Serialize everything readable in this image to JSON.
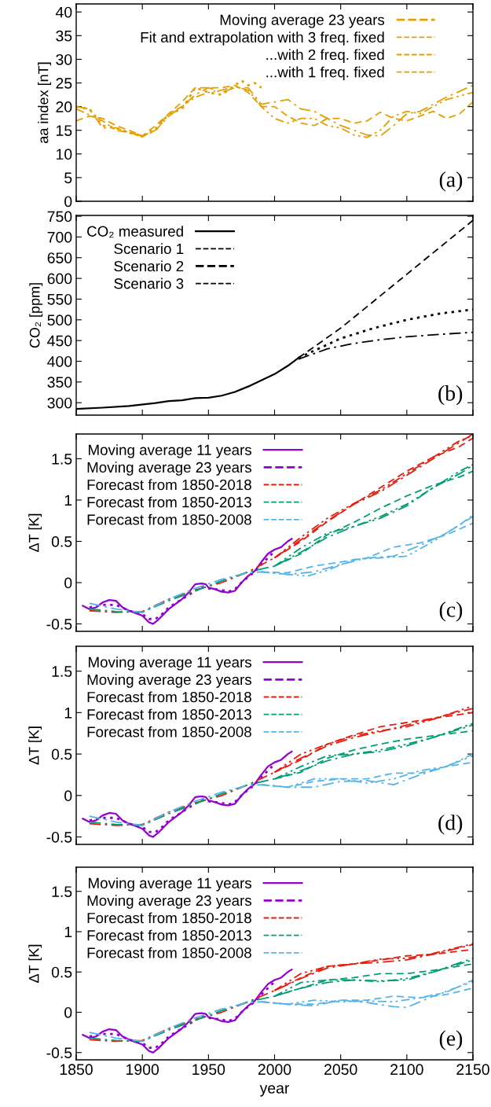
{
  "chart_data": [
    {
      "type": "line",
      "ylabel": "aa index [nT]",
      "xlim": [
        1850,
        2150
      ],
      "ylim": [
        0,
        41.7
      ],
      "xticks": [
        1850,
        1900,
        1950,
        2000,
        2050,
        2100,
        2150
      ],
      "yticks": [
        0,
        5,
        10,
        15,
        20,
        25,
        30,
        35,
        40
      ],
      "tick_labels": "y",
      "legend": "top right",
      "annotations": [
        "(a)"
      ],
      "series": [
        {
          "name": "Moving average 23 years",
          "color": "#e69f00",
          "line_style": "dotted",
          "x": [
            1850,
            1860,
            1870,
            1880,
            1890,
            1900,
            1910,
            1920,
            1930,
            1940,
            1950,
            1960,
            1970,
            1975,
            1980,
            1985,
            1990
          ],
          "values": [
            20,
            19.5,
            16,
            15.5,
            14.5,
            13.8,
            15,
            18.5,
            19.5,
            24,
            23,
            22.5,
            24.5,
            25.5,
            24.5,
            25,
            24
          ]
        },
        {
          "name": "Fit and extrapolation with 3 freq. fixed",
          "color": "#e69f00",
          "line_style": "dashdot",
          "x": [
            1850,
            1860,
            1870,
            1880,
            1890,
            1900,
            1910,
            1920,
            1930,
            1940,
            1950,
            1960,
            1970,
            1980,
            1990,
            2000,
            2010,
            2020,
            2030,
            2040,
            2050,
            2060,
            2070,
            2080,
            2090,
            2100,
            2110,
            2120,
            2130,
            2150
          ],
          "values": [
            20,
            19.5,
            15.5,
            15.5,
            14.5,
            13.8,
            15,
            18,
            20,
            22.5,
            24,
            23,
            24,
            24,
            20.5,
            21,
            21.5,
            19.5,
            19,
            17.5,
            16,
            15,
            14,
            13.8,
            16,
            18.5,
            19,
            20.5,
            22,
            24.5
          ]
        },
        {
          "name": "...with 2 freq. fixed",
          "color": "#e69f00",
          "line_style": "dashdotdot",
          "x": [
            1850,
            1870,
            1880,
            1890,
            1900,
            1910,
            1920,
            1930,
            1940,
            1950,
            1960,
            1970,
            1980,
            1990,
            2000,
            2010,
            2020,
            2030,
            2040,
            2050,
            2060,
            2070,
            2080,
            2090,
            2100,
            2110,
            2120,
            2130,
            2150
          ],
          "values": [
            19.5,
            17,
            15,
            14.5,
            13.6,
            15.5,
            18.5,
            20,
            22,
            23,
            23.5,
            24.2,
            23.5,
            20,
            17.5,
            16.5,
            17.5,
            17.5,
            16,
            15.5,
            14,
            13.5,
            15,
            18,
            19,
            18.5,
            20,
            21.5,
            23
          ]
        },
        {
          "name": "...with 1 freq. fixed",
          "color": "#e69f00",
          "line_style": "dashed",
          "x": [
            1850,
            1860,
            1870,
            1880,
            1890,
            1900,
            1910,
            1920,
            1930,
            1940,
            1950,
            1960,
            1970,
            1980,
            1990,
            2000,
            2010,
            2020,
            2030,
            2040,
            2050,
            2060,
            2070,
            2080,
            2090,
            2100,
            2110,
            2120,
            2130,
            2140,
            2150
          ],
          "values": [
            17,
            18,
            17.5,
            16,
            15,
            13.8,
            16,
            18.5,
            21,
            24,
            24,
            24,
            24.5,
            23,
            20,
            20,
            18,
            16.5,
            16,
            17.5,
            17.5,
            16.5,
            17,
            18.8,
            17.5,
            17,
            18,
            19,
            17.5,
            18.5,
            21
          ]
        }
      ]
    },
    {
      "type": "line",
      "ylabel": "CO₂ [ppm]",
      "xlim": [
        1850,
        2150
      ],
      "ylim": [
        270,
        752
      ],
      "xticks": [
        1850,
        1900,
        1950,
        2000,
        2050,
        2100,
        2150
      ],
      "yticks": [
        300,
        350,
        400,
        450,
        500,
        550,
        600,
        650,
        700,
        750
      ],
      "tick_labels": "y",
      "legend": "top left",
      "annotations": [
        "(b)"
      ],
      "series": [
        {
          "name": "CO₂ measured",
          "color": "#000000",
          "line_style": "solid",
          "x": [
            1850,
            1870,
            1890,
            1910,
            1920,
            1930,
            1940,
            1950,
            1960,
            1970,
            1980,
            1990,
            2000,
            2010,
            2018
          ],
          "values": [
            285,
            288,
            292,
            299,
            304,
            306,
            311,
            312,
            317,
            326,
            339,
            354,
            369,
            389,
            408
          ]
        },
        {
          "name": "Scenario 1",
          "color": "#000000",
          "line_style": "dashed",
          "x": [
            2018,
            2050,
            2100,
            2150
          ],
          "values": [
            408,
            480,
            610,
            740
          ]
        },
        {
          "name": "Scenario 2",
          "color": "#000000",
          "line_style": "dotted",
          "x": [
            2018,
            2050,
            2075,
            2100,
            2125,
            2150
          ],
          "values": [
            408,
            455,
            480,
            500,
            515,
            525
          ]
        },
        {
          "name": "Scenario 3",
          "color": "#000000",
          "line_style": "dashdot",
          "x": [
            2018,
            2040,
            2060,
            2080,
            2100,
            2125,
            2150
          ],
          "values": [
            405,
            430,
            443,
            452,
            459,
            465,
            470
          ]
        }
      ]
    },
    {
      "type": "line",
      "ylabel": "ΔT [K]",
      "xlim": [
        1850,
        2150
      ],
      "ylim": [
        -0.59,
        1.8
      ],
      "xticks": [
        1850,
        1900,
        1950,
        2000,
        2050,
        2100,
        2150
      ],
      "yticks": [
        -0.5,
        0,
        0.5,
        1,
        1.5
      ],
      "tick_labels": "y",
      "legend": "top left",
      "annotations": [
        "(c)"
      ],
      "series": [
        {
          "name": "Moving average 11 years",
          "color": "#9400d3",
          "line_style": "solid",
          "x": [
            1855,
            1860,
            1865,
            1870,
            1875,
            1880,
            1885,
            1890,
            1895,
            1900,
            1905,
            1908,
            1912,
            1920,
            1930,
            1935,
            1940,
            1945,
            1948,
            1950,
            1955,
            1960,
            1965,
            1970,
            1975,
            1980,
            1985,
            1990,
            1995,
            2000,
            2005,
            2010,
            2013
          ],
          "values": [
            -0.28,
            -0.32,
            -0.3,
            -0.24,
            -0.21,
            -0.22,
            -0.3,
            -0.34,
            -0.37,
            -0.4,
            -0.48,
            -0.5,
            -0.45,
            -0.32,
            -0.2,
            -0.12,
            -0.02,
            -0.01,
            -0.02,
            -0.06,
            -0.08,
            -0.11,
            -0.12,
            -0.1,
            0.0,
            0.08,
            0.14,
            0.25,
            0.35,
            0.4,
            0.43,
            0.5,
            0.53
          ]
        },
        {
          "name": "Moving average 23 years",
          "color": "#9400d3",
          "line_style": "dotted",
          "x": [
            1860,
            1870,
            1880,
            1890,
            1900,
            1905,
            1910,
            1915,
            1920,
            1930,
            1940,
            1945,
            1950,
            1960,
            1965,
            1970,
            1975,
            1980,
            1985,
            1990,
            1995,
            2000
          ],
          "values": [
            -0.3,
            -0.27,
            -0.27,
            -0.34,
            -0.38,
            -0.44,
            -0.44,
            -0.38,
            -0.3,
            -0.2,
            -0.1,
            -0.05,
            -0.07,
            -0.09,
            -0.11,
            -0.08,
            0.0,
            0.07,
            0.13,
            0.22,
            0.3,
            0.38
          ]
        },
        {
          "name": "Forecast from 1850-2018",
          "color": "#e51e10",
          "line_style": "dashdot",
          "x": [
            1860,
            1880,
            1900,
            1920,
            1940,
            1960,
            1980,
            2000,
            2020,
            2040,
            2060,
            2080,
            2100,
            2120,
            2140,
            2150
          ],
          "values": [
            -0.34,
            -0.36,
            -0.35,
            -0.2,
            -0.09,
            0.0,
            0.13,
            0.3,
            0.52,
            0.75,
            0.95,
            1.1,
            1.3,
            1.5,
            1.7,
            1.8
          ]
        },
        {
          "color": "#e51e10",
          "line_style": "dashdotdot",
          "x": [
            2000,
            2020,
            2040,
            2060,
            2080,
            2100,
            2120,
            2140,
            2150
          ],
          "values": [
            0.3,
            0.55,
            0.78,
            0.96,
            1.12,
            1.32,
            1.52,
            1.72,
            1.78
          ]
        },
        {
          "color": "#e51e10",
          "line_style": "dashed",
          "x": [
            2000,
            2020,
            2040,
            2060,
            2080,
            2100,
            2120,
            2140,
            2150
          ],
          "values": [
            0.3,
            0.5,
            0.74,
            0.95,
            1.15,
            1.35,
            1.52,
            1.65,
            1.75
          ]
        },
        {
          "name": "Forecast from 1850-2013",
          "color": "#009e73",
          "line_style": "dashdot",
          "x": [
            1860,
            1880,
            1900,
            1920,
            1940,
            1960,
            1980,
            2000,
            2020,
            2040,
            2060,
            2080,
            2100,
            2120,
            2140,
            2150
          ],
          "values": [
            -0.32,
            -0.35,
            -0.36,
            -0.22,
            -0.1,
            0.02,
            0.13,
            0.2,
            0.37,
            0.55,
            0.68,
            0.78,
            0.93,
            1.15,
            1.32,
            1.42
          ]
        },
        {
          "color": "#009e73",
          "line_style": "dashdotdot",
          "x": [
            2000,
            2020,
            2040,
            2060,
            2080,
            2100,
            2120,
            2140,
            2150
          ],
          "values": [
            0.2,
            0.42,
            0.6,
            0.68,
            0.8,
            0.95,
            1.15,
            1.35,
            1.43
          ]
        },
        {
          "color": "#009e73",
          "line_style": "dashed",
          "x": [
            2000,
            2020,
            2040,
            2060,
            2080,
            2100,
            2120,
            2140,
            2150
          ],
          "values": [
            0.2,
            0.35,
            0.58,
            0.73,
            0.9,
            1.05,
            1.18,
            1.28,
            1.35
          ]
        },
        {
          "name": "Forecast from 1850-2008",
          "color": "#56b4e9",
          "line_style": "dashdot",
          "x": [
            1860,
            1880,
            1900,
            1920,
            1940,
            1960,
            1980,
            1990,
            2010,
            2030,
            2050,
            2070,
            2090,
            2110,
            2130,
            2150
          ],
          "values": [
            -0.25,
            -0.32,
            -0.36,
            -0.2,
            -0.07,
            0.04,
            0.12,
            0.13,
            0.1,
            0.13,
            0.22,
            0.3,
            0.32,
            0.45,
            0.6,
            0.8
          ]
        },
        {
          "color": "#56b4e9",
          "line_style": "dashdotdot",
          "x": [
            1990,
            2010,
            2025,
            2040,
            2060,
            2080,
            2100,
            2120,
            2140,
            2150
          ],
          "values": [
            0.13,
            0.1,
            0.08,
            0.15,
            0.28,
            0.3,
            0.32,
            0.5,
            0.7,
            0.82
          ]
        },
        {
          "color": "#56b4e9",
          "line_style": "dashed",
          "x": [
            1990,
            2010,
            2030,
            2050,
            2070,
            2090,
            2110,
            2130,
            2150
          ],
          "values": [
            0.13,
            0.12,
            0.2,
            0.25,
            0.3,
            0.43,
            0.48,
            0.58,
            0.72
          ]
        }
      ]
    },
    {
      "type": "line",
      "ylabel": "ΔT [K]",
      "xlim": [
        1850,
        2150
      ],
      "ylim": [
        -0.59,
        1.8
      ],
      "xticks": [
        1850,
        1900,
        1950,
        2000,
        2050,
        2100,
        2150
      ],
      "yticks": [
        -0.5,
        0,
        0.5,
        1,
        1.5
      ],
      "tick_labels": "y",
      "legend": "top left",
      "annotations": [
        "(d)"
      ],
      "series": [
        {
          "name": "Moving average 11 years",
          "color": "#9400d3",
          "line_style": "solid",
          "x": [
            1855,
            1860,
            1865,
            1870,
            1875,
            1880,
            1885,
            1890,
            1895,
            1900,
            1905,
            1908,
            1912,
            1920,
            1930,
            1935,
            1940,
            1945,
            1948,
            1950,
            1955,
            1960,
            1965,
            1970,
            1975,
            1980,
            1985,
            1990,
            1995,
            2000,
            2005,
            2010,
            2013
          ],
          "values": [
            -0.28,
            -0.32,
            -0.3,
            -0.24,
            -0.21,
            -0.22,
            -0.3,
            -0.34,
            -0.37,
            -0.4,
            -0.48,
            -0.5,
            -0.45,
            -0.32,
            -0.2,
            -0.12,
            -0.02,
            -0.01,
            -0.02,
            -0.06,
            -0.08,
            -0.11,
            -0.12,
            -0.1,
            0.0,
            0.08,
            0.14,
            0.25,
            0.35,
            0.4,
            0.43,
            0.5,
            0.53
          ]
        },
        {
          "name": "Moving average 23 years",
          "color": "#9400d3",
          "line_style": "dotted",
          "x": [
            1860,
            1870,
            1880,
            1890,
            1900,
            1905,
            1910,
            1915,
            1920,
            1930,
            1940,
            1945,
            1950,
            1960,
            1965,
            1970,
            1975,
            1980,
            1985,
            1990,
            1995,
            2000
          ],
          "values": [
            -0.3,
            -0.27,
            -0.27,
            -0.34,
            -0.38,
            -0.44,
            -0.44,
            -0.38,
            -0.3,
            -0.2,
            -0.1,
            -0.05,
            -0.07,
            -0.09,
            -0.11,
            -0.08,
            0.0,
            0.07,
            0.13,
            0.22,
            0.3,
            0.38
          ]
        },
        {
          "name": "Forecast from 1850-2018",
          "color": "#e51e10",
          "line_style": "dashdot",
          "x": [
            1860,
            1880,
            1900,
            1920,
            1940,
            1960,
            1980,
            2000,
            2020,
            2040,
            2060,
            2080,
            2100,
            2120,
            2150
          ],
          "values": [
            -0.34,
            -0.36,
            -0.35,
            -0.2,
            -0.09,
            0.0,
            0.13,
            0.28,
            0.45,
            0.6,
            0.7,
            0.77,
            0.85,
            0.93,
            1.05
          ]
        },
        {
          "color": "#e51e10",
          "line_style": "dashdotdot",
          "x": [
            2000,
            2020,
            2040,
            2060,
            2080,
            2100,
            2120,
            2150
          ],
          "values": [
            0.28,
            0.5,
            0.62,
            0.72,
            0.78,
            0.83,
            0.92,
            1.08
          ]
        },
        {
          "color": "#e51e10",
          "line_style": "dashed",
          "x": [
            2000,
            2020,
            2040,
            2060,
            2080,
            2100,
            2120,
            2150
          ],
          "values": [
            0.28,
            0.43,
            0.62,
            0.73,
            0.83,
            0.88,
            0.93,
            1.0
          ]
        },
        {
          "name": "Forecast from 1850-2013",
          "color": "#009e73",
          "line_style": "dashdot",
          "x": [
            1860,
            1880,
            1900,
            1920,
            1940,
            1960,
            1980,
            2000,
            2020,
            2040,
            2060,
            2080,
            2100,
            2120,
            2150
          ],
          "values": [
            -0.32,
            -0.35,
            -0.36,
            -0.22,
            -0.1,
            0.02,
            0.13,
            0.2,
            0.3,
            0.42,
            0.5,
            0.53,
            0.6,
            0.7,
            0.85
          ]
        },
        {
          "color": "#009e73",
          "line_style": "dashdotdot",
          "x": [
            2000,
            2020,
            2040,
            2060,
            2080,
            2100,
            2120,
            2150
          ],
          "values": [
            0.2,
            0.35,
            0.48,
            0.5,
            0.55,
            0.62,
            0.7,
            0.87
          ]
        },
        {
          "color": "#009e73",
          "line_style": "dashed",
          "x": [
            2000,
            2020,
            2040,
            2060,
            2080,
            2100,
            2120,
            2150
          ],
          "values": [
            0.2,
            0.28,
            0.45,
            0.55,
            0.62,
            0.68,
            0.72,
            0.78
          ]
        },
        {
          "name": "Forecast from 1850-2008",
          "color": "#56b4e9",
          "line_style": "dashdot",
          "x": [
            1860,
            1880,
            1900,
            1920,
            1940,
            1960,
            1980,
            1990,
            2010,
            2030,
            2050,
            2070,
            2090,
            2110,
            2130,
            2150
          ],
          "values": [
            -0.25,
            -0.32,
            -0.36,
            -0.2,
            -0.07,
            0.04,
            0.12,
            0.13,
            0.1,
            0.1,
            0.17,
            0.18,
            0.13,
            0.25,
            0.35,
            0.48
          ]
        },
        {
          "color": "#56b4e9",
          "line_style": "dashdotdot",
          "x": [
            1990,
            2010,
            2030,
            2050,
            2070,
            2090,
            2110,
            2130,
            2150
          ],
          "values": [
            0.13,
            0.1,
            0.2,
            0.2,
            0.15,
            0.2,
            0.3,
            0.35,
            0.5
          ]
        },
        {
          "color": "#56b4e9",
          "line_style": "dashed",
          "x": [
            1990,
            2010,
            2030,
            2050,
            2070,
            2090,
            2110,
            2130,
            2150
          ],
          "values": [
            0.13,
            0.1,
            0.17,
            0.2,
            0.2,
            0.27,
            0.27,
            0.35,
            0.4
          ]
        }
      ]
    },
    {
      "type": "line",
      "xlabel": "year",
      "ylabel": "ΔT [K]",
      "xlim": [
        1850,
        2150
      ],
      "ylim": [
        -0.59,
        1.8
      ],
      "xticks": [
        1850,
        1900,
        1950,
        2000,
        2050,
        2100,
        2150
      ],
      "yticks": [
        -0.5,
        0,
        0.5,
        1,
        1.5
      ],
      "legend": "top left",
      "annotations": [
        "(e)"
      ],
      "series": [
        {
          "name": "Moving average 11 years",
          "color": "#9400d3",
          "line_style": "solid",
          "x": [
            1855,
            1860,
            1865,
            1870,
            1875,
            1880,
            1885,
            1890,
            1895,
            1900,
            1905,
            1908,
            1912,
            1920,
            1930,
            1935,
            1940,
            1945,
            1948,
            1950,
            1955,
            1960,
            1965,
            1970,
            1975,
            1980,
            1985,
            1990,
            1995,
            2000,
            2005,
            2010,
            2013
          ],
          "values": [
            -0.28,
            -0.32,
            -0.3,
            -0.24,
            -0.21,
            -0.22,
            -0.3,
            -0.34,
            -0.37,
            -0.4,
            -0.48,
            -0.5,
            -0.45,
            -0.32,
            -0.2,
            -0.12,
            -0.02,
            -0.01,
            -0.02,
            -0.06,
            -0.08,
            -0.11,
            -0.12,
            -0.1,
            0.0,
            0.08,
            0.14,
            0.25,
            0.35,
            0.4,
            0.43,
            0.5,
            0.53
          ]
        },
        {
          "name": "Moving average 23 years",
          "color": "#9400d3",
          "line_style": "dotted",
          "x": [
            1860,
            1870,
            1880,
            1890,
            1900,
            1905,
            1910,
            1915,
            1920,
            1930,
            1940,
            1945,
            1950,
            1960,
            1965,
            1970,
            1975,
            1980,
            1985,
            1990,
            1995,
            2000
          ],
          "values": [
            -0.3,
            -0.27,
            -0.27,
            -0.34,
            -0.38,
            -0.44,
            -0.44,
            -0.38,
            -0.3,
            -0.2,
            -0.1,
            -0.05,
            -0.07,
            -0.09,
            -0.11,
            -0.08,
            0.0,
            0.07,
            0.13,
            0.22,
            0.3,
            0.38
          ]
        },
        {
          "name": "Forecast from 1850-2018",
          "color": "#e51e10",
          "line_style": "dashdot",
          "x": [
            1860,
            1880,
            1900,
            1920,
            1940,
            1960,
            1980,
            2000,
            2020,
            2040,
            2060,
            2080,
            2100,
            2120,
            2150
          ],
          "values": [
            -0.34,
            -0.36,
            -0.35,
            -0.2,
            -0.09,
            0.0,
            0.13,
            0.27,
            0.42,
            0.55,
            0.6,
            0.62,
            0.65,
            0.72,
            0.84
          ]
        },
        {
          "color": "#e51e10",
          "line_style": "dashdotdot",
          "x": [
            2000,
            2020,
            2040,
            2060,
            2080,
            2100,
            2120,
            2150
          ],
          "values": [
            0.27,
            0.48,
            0.57,
            0.6,
            0.66,
            0.67,
            0.73,
            0.85
          ]
        },
        {
          "color": "#e51e10",
          "line_style": "dashed",
          "x": [
            2000,
            2020,
            2040,
            2060,
            2080,
            2100,
            2120,
            2150
          ],
          "values": [
            0.27,
            0.43,
            0.57,
            0.6,
            0.65,
            0.7,
            0.72,
            0.78
          ]
        },
        {
          "name": "Forecast from 1850-2013",
          "color": "#009e73",
          "line_style": "dashdot",
          "x": [
            1860,
            1880,
            1900,
            1920,
            1940,
            1960,
            1980,
            2000,
            2020,
            2040,
            2060,
            2080,
            2100,
            2120,
            2150
          ],
          "values": [
            -0.32,
            -0.35,
            -0.36,
            -0.22,
            -0.1,
            0.02,
            0.13,
            0.2,
            0.3,
            0.37,
            0.4,
            0.39,
            0.4,
            0.5,
            0.67
          ]
        },
        {
          "color": "#009e73",
          "line_style": "dashdotdot",
          "x": [
            2000,
            2020,
            2040,
            2060,
            2080,
            2100,
            2120,
            2150
          ],
          "values": [
            0.2,
            0.37,
            0.4,
            0.4,
            0.38,
            0.42,
            0.5,
            0.65
          ]
        },
        {
          "color": "#009e73",
          "line_style": "dashed",
          "x": [
            2000,
            2020,
            2040,
            2060,
            2080,
            2100,
            2120,
            2150
          ],
          "values": [
            0.2,
            0.3,
            0.4,
            0.43,
            0.48,
            0.48,
            0.52,
            0.6
          ]
        },
        {
          "name": "Forecast from 1850-2008",
          "color": "#56b4e9",
          "line_style": "dashdot",
          "x": [
            1860,
            1880,
            1900,
            1920,
            1940,
            1960,
            1980,
            1990,
            2010,
            2030,
            2050,
            2070,
            2090,
            2100,
            2120,
            2150
          ],
          "values": [
            -0.25,
            -0.32,
            -0.36,
            -0.2,
            -0.07,
            0.04,
            0.12,
            0.13,
            0.1,
            0.08,
            0.15,
            0.12,
            0.07,
            0.06,
            0.2,
            0.38
          ]
        },
        {
          "color": "#56b4e9",
          "line_style": "dashdotdot",
          "x": [
            1990,
            2010,
            2030,
            2050,
            2070,
            2090,
            2110,
            2130,
            2150
          ],
          "values": [
            0.13,
            0.1,
            0.15,
            0.13,
            0.14,
            0.13,
            0.18,
            0.25,
            0.4
          ]
        },
        {
          "color": "#56b4e9",
          "line_style": "dashed",
          "x": [
            1990,
            2010,
            2030,
            2050,
            2070,
            2090,
            2110,
            2130,
            2150
          ],
          "values": [
            0.13,
            0.1,
            0.1,
            0.15,
            0.15,
            0.2,
            0.18,
            0.22,
            0.3
          ]
        }
      ]
    }
  ]
}
